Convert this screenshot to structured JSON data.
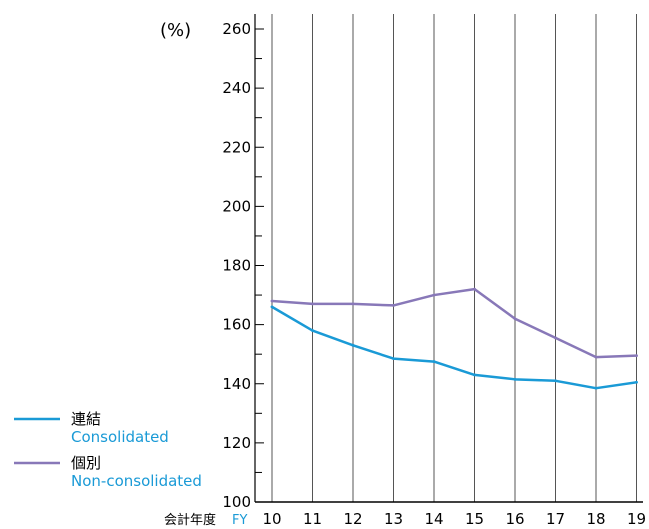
{
  "chart_data": {
    "type": "line",
    "unit_label": "(%)",
    "x_axis_label_jp": "会計年度",
    "x_axis_label_en": "FY",
    "categories": [
      "10",
      "11",
      "12",
      "13",
      "14",
      "15",
      "16",
      "17",
      "18",
      "19"
    ],
    "ylim": [
      100,
      260
    ],
    "y_ticks": [
      "100",
      "120",
      "140",
      "160",
      "180",
      "200",
      "220",
      "240",
      "260"
    ],
    "grid": "vertical",
    "legend_position": "bottom-left",
    "series": [
      {
        "name_jp": "連結",
        "name_en": "Consolidated",
        "color": "#1a9ad6",
        "values": [
          166,
          158,
          153,
          148.5,
          147.5,
          143,
          141.5,
          141,
          138.5,
          140.5
        ]
      },
      {
        "name_jp": "個別",
        "name_en": "Non-consolidated",
        "color": "#8878b8",
        "values": [
          168,
          167,
          167,
          166.5,
          170,
          172,
          162,
          155.5,
          149,
          149.5
        ]
      }
    ]
  }
}
